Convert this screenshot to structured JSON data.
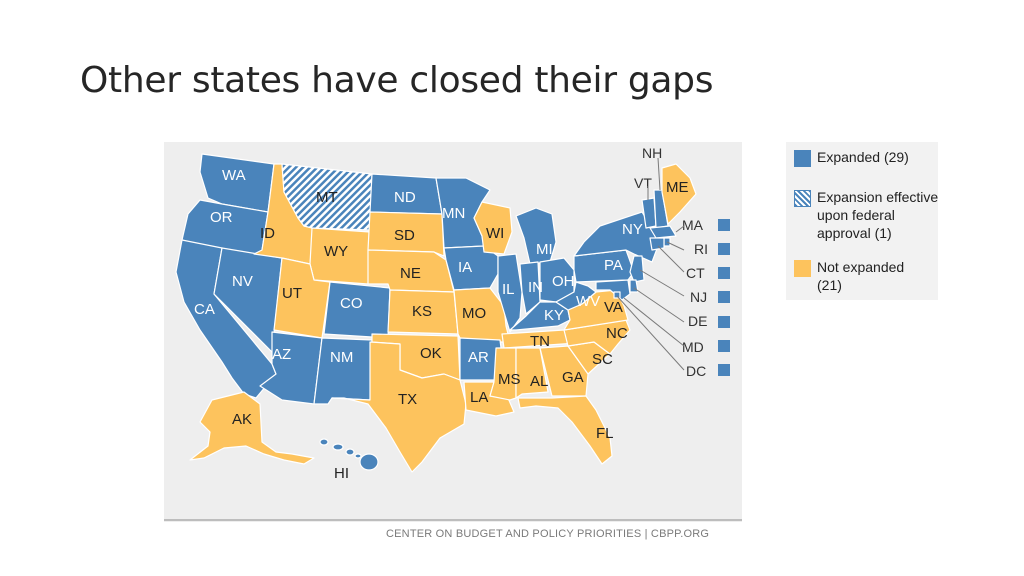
{
  "title": "Other states have closed their gaps",
  "credit": "CENTER ON BUDGET AND POLICY PRIORITIES | CBPP.ORG",
  "colors": {
    "expanded": "#4a84bb",
    "not_expanded": "#fdc35d",
    "border": "#ffffff",
    "panel": "#eeeeee"
  },
  "legend": [
    {
      "key": "expanded",
      "label": "Expanded (29)"
    },
    {
      "key": "pending",
      "label": "Expansion effective upon federal approval (1)"
    },
    {
      "key": "not_expanded",
      "label": "Not expanded (21)"
    }
  ],
  "states": {
    "WA": "expanded",
    "OR": "expanded",
    "CA": "expanded",
    "NV": "expanded",
    "ID": "not_expanded",
    "MT": "pending",
    "WY": "not_expanded",
    "UT": "not_expanded",
    "AZ": "expanded",
    "CO": "expanded",
    "NM": "expanded",
    "ND": "expanded",
    "SD": "not_expanded",
    "NE": "not_expanded",
    "KS": "not_expanded",
    "OK": "not_expanded",
    "TX": "not_expanded",
    "MN": "expanded",
    "IA": "expanded",
    "MO": "not_expanded",
    "AR": "expanded",
    "LA": "not_expanded",
    "WI": "not_expanded",
    "IL": "expanded",
    "MI": "expanded",
    "IN": "expanded",
    "OH": "expanded",
    "KY": "expanded",
    "TN": "not_expanded",
    "MS": "not_expanded",
    "AL": "not_expanded",
    "GA": "not_expanded",
    "FL": "not_expanded",
    "SC": "not_expanded",
    "NC": "not_expanded",
    "VA": "not_expanded",
    "WV": "expanded",
    "PA": "expanded",
    "NY": "expanded",
    "VT": "expanded",
    "NH": "expanded",
    "ME": "not_expanded",
    "MA": "expanded",
    "RI": "expanded",
    "CT": "expanded",
    "NJ": "expanded",
    "DE": "expanded",
    "MD": "expanded",
    "DC": "expanded",
    "AK": "not_expanded",
    "HI": "expanded"
  },
  "east_labels": [
    "NH",
    "VT",
    "ME",
    "NY",
    "MA",
    "RI",
    "CT",
    "NJ",
    "DE",
    "MD",
    "DC"
  ]
}
